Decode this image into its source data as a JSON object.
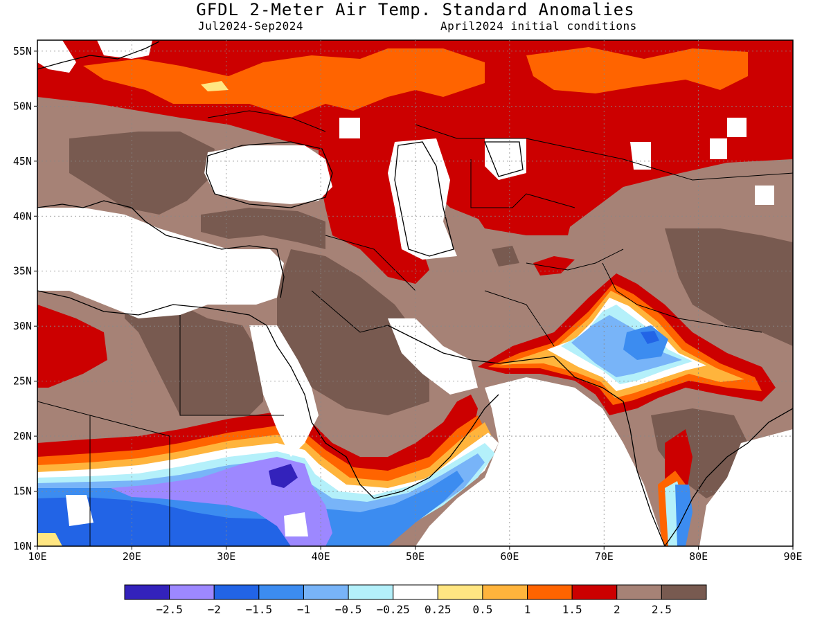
{
  "title": "GFDL 2-Meter Air Temp. Standard Anomalies",
  "subtitle_left": "Jul2024-Sep2024",
  "subtitle_right": "April2024 initial conditions",
  "map": {
    "lon_range": [
      10,
      90
    ],
    "lat_range": [
      10,
      56
    ],
    "lon_ticks": [
      "10E",
      "20E",
      "30E",
      "40E",
      "50E",
      "60E",
      "70E",
      "80E",
      "90E"
    ],
    "lat_ticks": [
      "10N",
      "15N",
      "20N",
      "25N",
      "30N",
      "35N",
      "40N",
      "45N",
      "50N",
      "55N"
    ],
    "grid": true
  },
  "colorbar": {
    "colors": [
      "#3322bb",
      "#9d88ff",
      "#2264e6",
      "#3c8cf0",
      "#78b4f8",
      "#b4f0fa",
      "#ffffff",
      "#ffe682",
      "#ffb43c",
      "#ff6400",
      "#cc0000",
      "#a68276",
      "#785a50"
    ],
    "labels": [
      "-2.5",
      "-2",
      "-1.5",
      "-1",
      "-0.5",
      "-0.25",
      "0.25",
      "0.5",
      "1",
      "1.5",
      "2",
      "2.5"
    ]
  }
}
